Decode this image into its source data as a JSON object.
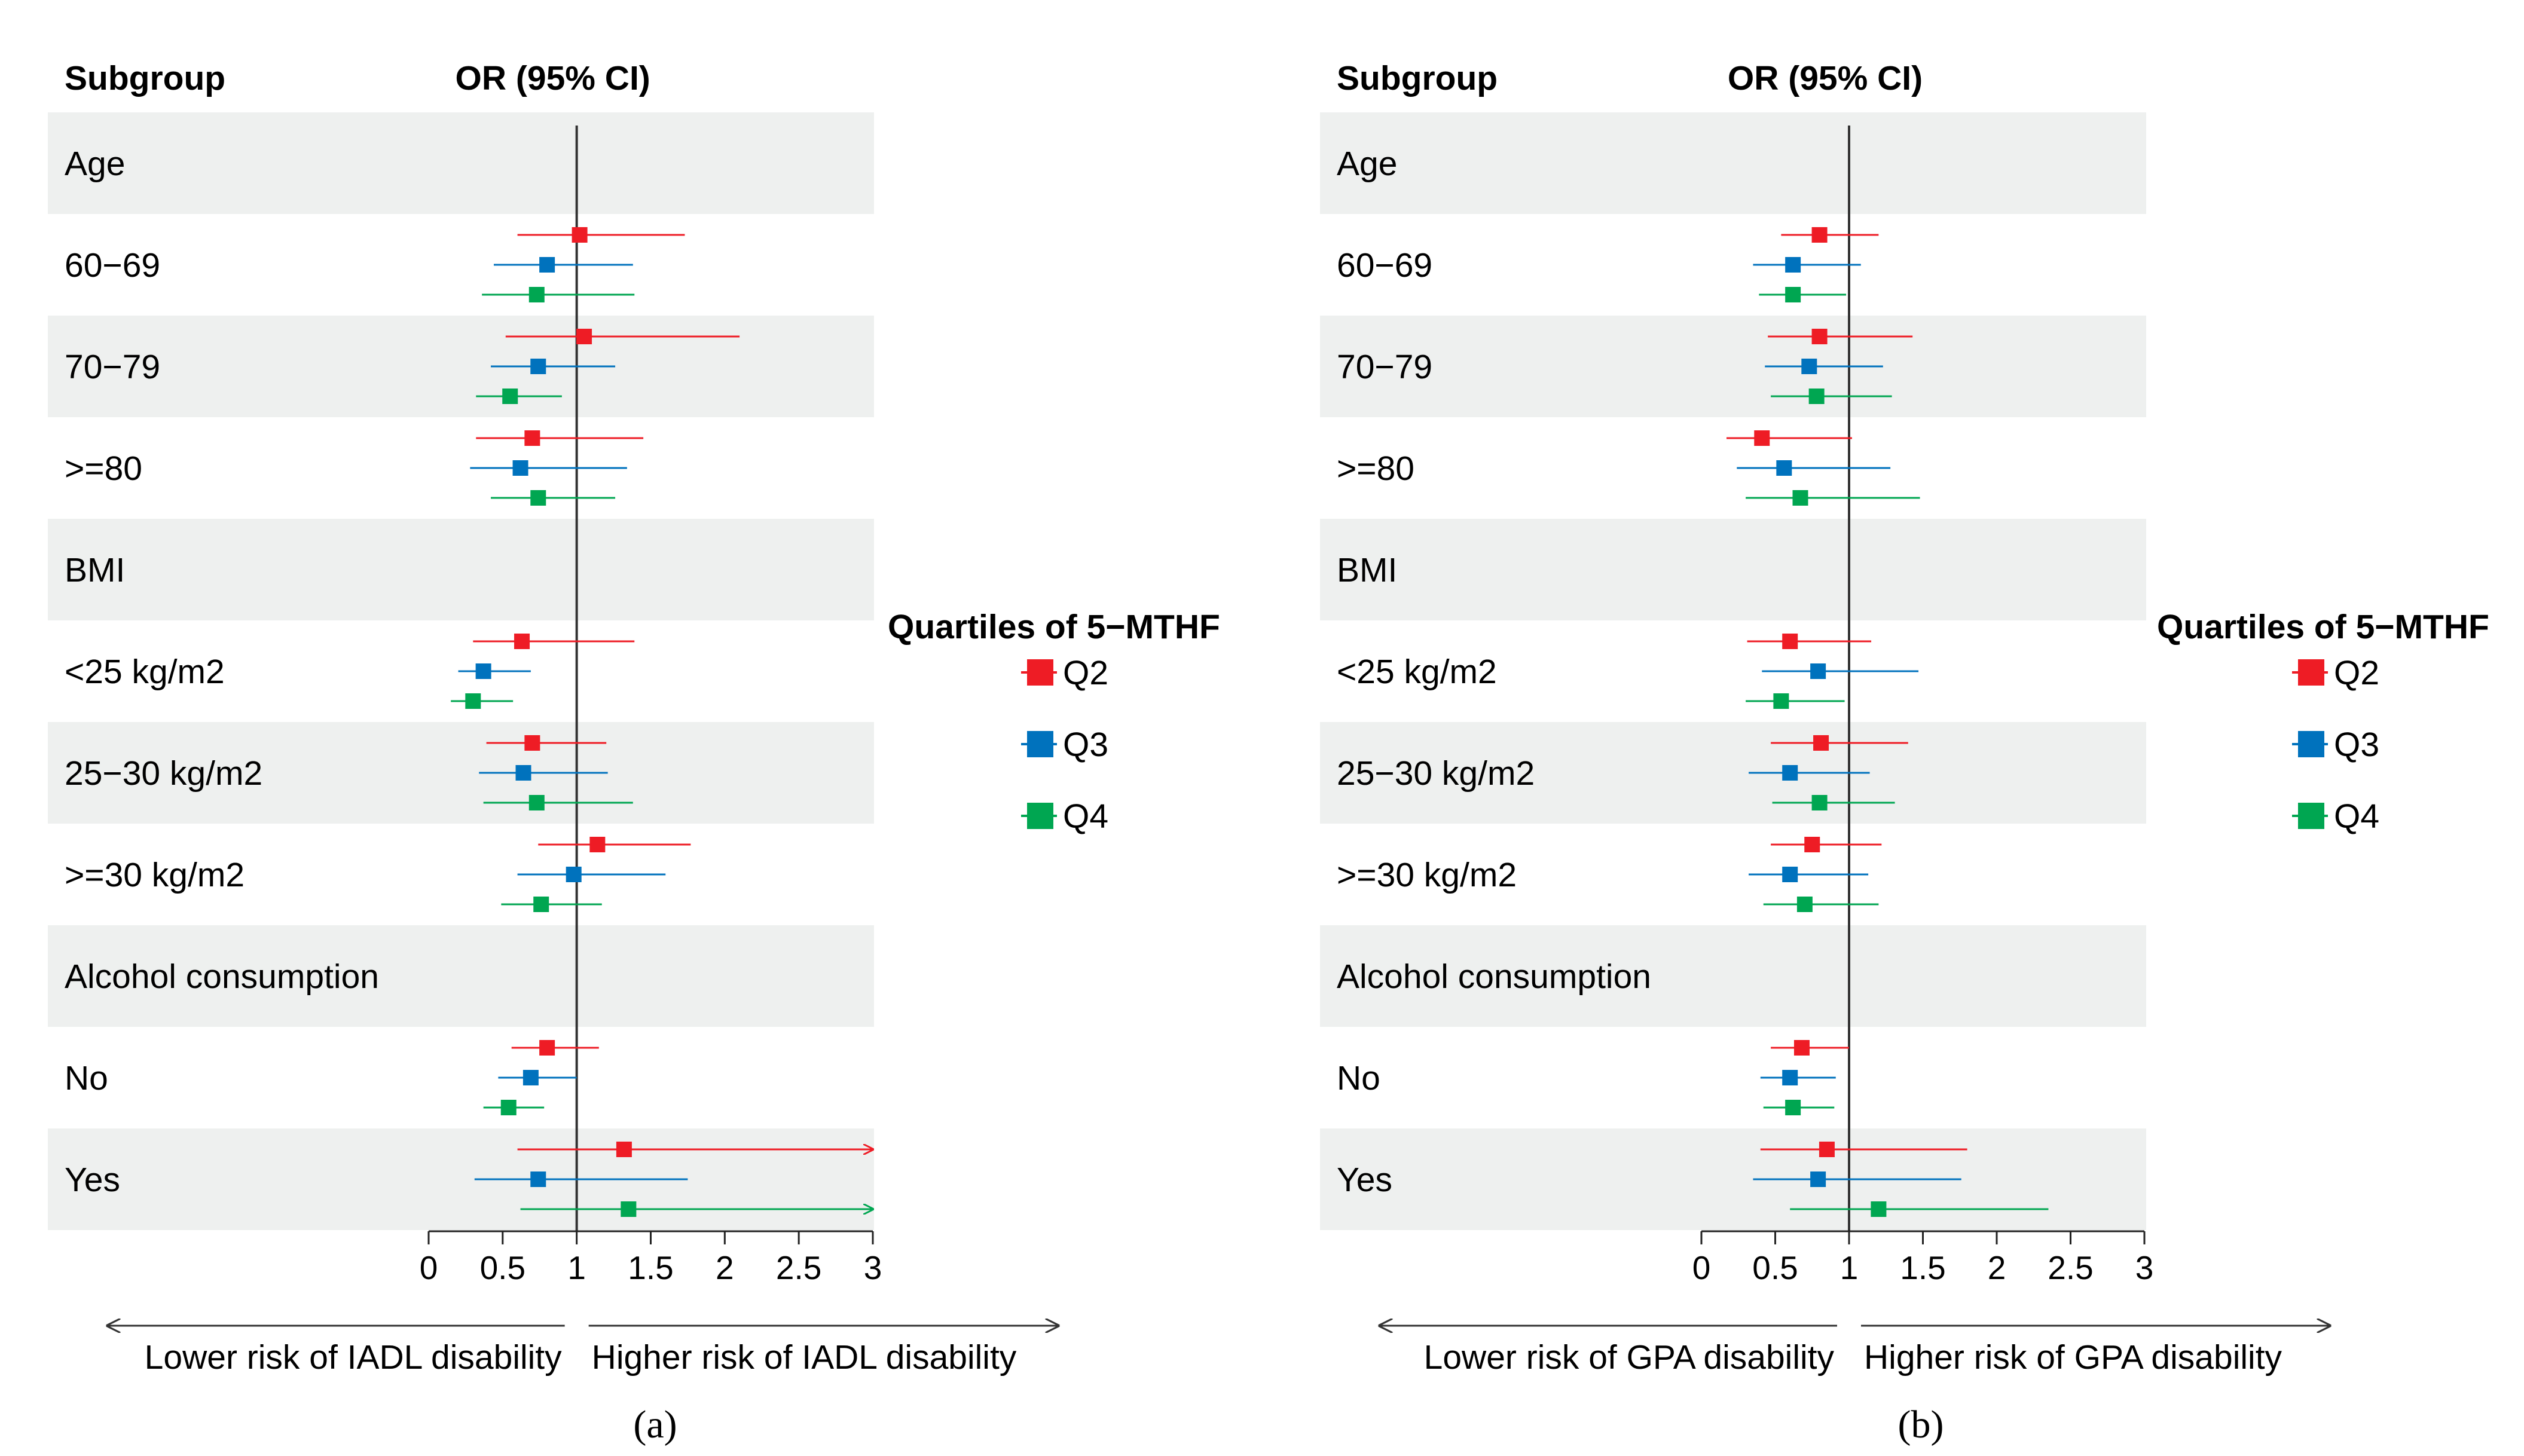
{
  "colors": {
    "Q2": "#ee1c25",
    "Q3": "#0072bd",
    "Q4": "#00a651",
    "row_band": "#eef0ef",
    "ref_line": "#333333"
  },
  "chart_data": [
    {
      "type": "forest",
      "panel_label": "(a)",
      "header_subgroup": "Subgroup",
      "header_or": "OR (95% CI)",
      "x_ticks": [
        "0",
        "0.5",
        "1",
        "1.5",
        "2",
        "2.5",
        "3"
      ],
      "xlim": [
        0,
        3
      ],
      "reference_line": 1,
      "arrow_left_label": "Lower risk of IADL disability",
      "arrow_right_label": "Higher risk of IADL disability",
      "legend_title": "Quartiles of 5−MTHF",
      "series_names": [
        "Q2",
        "Q3",
        "Q4"
      ],
      "rows": [
        {
          "label": "Age",
          "is_header": true
        },
        {
          "label": "60−69",
          "estimates": [
            {
              "series": "Q2",
              "or": 1.02,
              "low": 0.6,
              "high": 1.73
            },
            {
              "series": "Q3",
              "or": 0.8,
              "low": 0.44,
              "high": 1.38
            },
            {
              "series": "Q4",
              "or": 0.73,
              "low": 0.36,
              "high": 1.39
            }
          ]
        },
        {
          "label": "70−79",
          "estimates": [
            {
              "series": "Q2",
              "or": 1.05,
              "low": 0.52,
              "high": 2.1
            },
            {
              "series": "Q3",
              "or": 0.74,
              "low": 0.42,
              "high": 1.26
            },
            {
              "series": "Q4",
              "or": 0.55,
              "low": 0.32,
              "high": 0.9
            }
          ]
        },
        {
          "label": ">=80",
          "estimates": [
            {
              "series": "Q2",
              "or": 0.7,
              "low": 0.32,
              "high": 1.45
            },
            {
              "series": "Q3",
              "or": 0.62,
              "low": 0.28,
              "high": 1.34
            },
            {
              "series": "Q4",
              "or": 0.74,
              "low": 0.42,
              "high": 1.26
            }
          ]
        },
        {
          "label": "BMI",
          "is_header": true
        },
        {
          "label": "<25 kg/m2",
          "estimates": [
            {
              "series": "Q2",
              "or": 0.63,
              "low": 0.3,
              "high": 1.39
            },
            {
              "series": "Q3",
              "or": 0.37,
              "low": 0.2,
              "high": 0.69
            },
            {
              "series": "Q4",
              "or": 0.3,
              "low": 0.15,
              "high": 0.57
            }
          ]
        },
        {
          "label": "25−30 kg/m2",
          "estimates": [
            {
              "series": "Q2",
              "or": 0.7,
              "low": 0.39,
              "high": 1.2
            },
            {
              "series": "Q3",
              "or": 0.64,
              "low": 0.34,
              "high": 1.21
            },
            {
              "series": "Q4",
              "or": 0.73,
              "low": 0.37,
              "high": 1.38
            }
          ]
        },
        {
          "label": ">=30 kg/m2",
          "estimates": [
            {
              "series": "Q2",
              "or": 1.14,
              "low": 0.74,
              "high": 1.77
            },
            {
              "series": "Q3",
              "or": 0.98,
              "low": 0.6,
              "high": 1.6
            },
            {
              "series": "Q4",
              "or": 0.76,
              "low": 0.49,
              "high": 1.17
            }
          ]
        },
        {
          "label": "Alcohol consumption",
          "is_header": true
        },
        {
          "label": "No",
          "estimates": [
            {
              "series": "Q2",
              "or": 0.8,
              "low": 0.56,
              "high": 1.15
            },
            {
              "series": "Q3",
              "or": 0.69,
              "low": 0.47,
              "high": 1.0
            },
            {
              "series": "Q4",
              "or": 0.54,
              "low": 0.37,
              "high": 0.78
            }
          ]
        },
        {
          "label": "Yes",
          "estimates": [
            {
              "series": "Q2",
              "or": 1.32,
              "low": 0.6,
              "high": 3.0,
              "arrow": true
            },
            {
              "series": "Q3",
              "or": 0.74,
              "low": 0.31,
              "high": 1.75
            },
            {
              "series": "Q4",
              "or": 1.35,
              "low": 0.62,
              "high": 3.0,
              "arrow": true
            }
          ]
        }
      ]
    },
    {
      "type": "forest",
      "panel_label": "(b)",
      "header_subgroup": "Subgroup",
      "header_or": "OR (95% CI)",
      "x_ticks": [
        "0",
        "0.5",
        "1",
        "1.5",
        "2",
        "2.5",
        "3"
      ],
      "xlim": [
        0,
        3
      ],
      "reference_line": 1,
      "arrow_left_label": "Lower risk of GPA disability",
      "arrow_right_label": "Higher risk of GPA disability",
      "legend_title": "Quartiles of 5−MTHF",
      "series_names": [
        "Q2",
        "Q3",
        "Q4"
      ],
      "rows": [
        {
          "label": "Age",
          "is_header": true
        },
        {
          "label": "60−69",
          "estimates": [
            {
              "series": "Q2",
              "or": 0.8,
              "low": 0.54,
              "high": 1.2
            },
            {
              "series": "Q3",
              "or": 0.62,
              "low": 0.35,
              "high": 1.08
            },
            {
              "series": "Q4",
              "or": 0.62,
              "low": 0.39,
              "high": 0.98
            }
          ]
        },
        {
          "label": "70−79",
          "estimates": [
            {
              "series": "Q2",
              "or": 0.8,
              "low": 0.45,
              "high": 1.43
            },
            {
              "series": "Q3",
              "or": 0.73,
              "low": 0.43,
              "high": 1.23
            },
            {
              "series": "Q4",
              "or": 0.78,
              "low": 0.47,
              "high": 1.29
            }
          ]
        },
        {
          "label": ">=80",
          "estimates": [
            {
              "series": "Q2",
              "or": 0.41,
              "low": 0.17,
              "high": 1.02
            },
            {
              "series": "Q3",
              "or": 0.56,
              "low": 0.24,
              "high": 1.28
            },
            {
              "series": "Q4",
              "or": 0.67,
              "low": 0.3,
              "high": 1.48
            }
          ]
        },
        {
          "label": "BMI",
          "is_header": true
        },
        {
          "label": "<25 kg/m2",
          "estimates": [
            {
              "series": "Q2",
              "or": 0.6,
              "low": 0.31,
              "high": 1.15
            },
            {
              "series": "Q3",
              "or": 0.79,
              "low": 0.41,
              "high": 1.47
            },
            {
              "series": "Q4",
              "or": 0.54,
              "low": 0.3,
              "high": 0.97
            }
          ]
        },
        {
          "label": "25−30 kg/m2",
          "estimates": [
            {
              "series": "Q2",
              "or": 0.81,
              "low": 0.47,
              "high": 1.4
            },
            {
              "series": "Q3",
              "or": 0.6,
              "low": 0.32,
              "high": 1.14
            },
            {
              "series": "Q4",
              "or": 0.8,
              "low": 0.48,
              "high": 1.31
            }
          ]
        },
        {
          "label": ">=30 kg/m2",
          "estimates": [
            {
              "series": "Q2",
              "or": 0.75,
              "low": 0.47,
              "high": 1.22
            },
            {
              "series": "Q3",
              "or": 0.6,
              "low": 0.32,
              "high": 1.13
            },
            {
              "series": "Q4",
              "or": 0.7,
              "low": 0.42,
              "high": 1.2
            }
          ]
        },
        {
          "label": "Alcohol consumption",
          "is_header": true
        },
        {
          "label": "No",
          "estimates": [
            {
              "series": "Q2",
              "or": 0.68,
              "low": 0.47,
              "high": 1.0
            },
            {
              "series": "Q3",
              "or": 0.6,
              "low": 0.4,
              "high": 0.91
            },
            {
              "series": "Q4",
              "or": 0.62,
              "low": 0.42,
              "high": 0.9
            }
          ]
        },
        {
          "label": "Yes",
          "estimates": [
            {
              "series": "Q2",
              "or": 0.85,
              "low": 0.4,
              "high": 1.8
            },
            {
              "series": "Q3",
              "or": 0.79,
              "low": 0.35,
              "high": 1.76
            },
            {
              "series": "Q4",
              "or": 1.2,
              "low": 0.6,
              "high": 2.35
            }
          ]
        }
      ]
    }
  ]
}
